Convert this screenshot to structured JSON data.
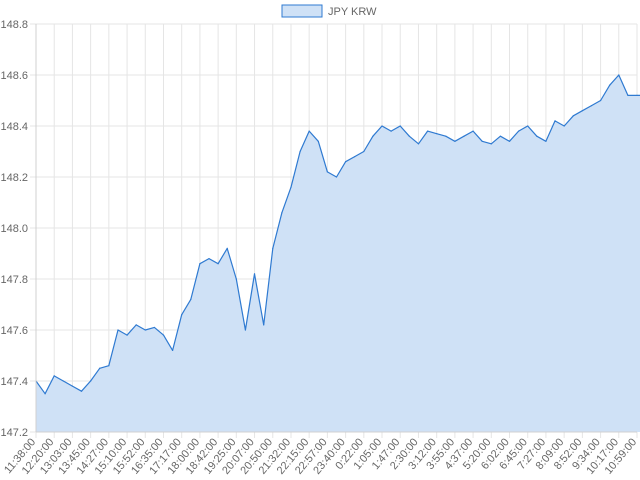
{
  "chart_data": {
    "type": "area",
    "title": "",
    "xlabel": "",
    "ylabel": "",
    "legend": {
      "position": "top-center",
      "label": "JPY KRW"
    },
    "colors": {
      "line": "#2f7ad1",
      "fill": "#cfe1f6",
      "grid": "#e5e5e5",
      "tick_text": "#666666"
    },
    "grid": true,
    "ylim": [
      147.2,
      148.8
    ],
    "y_ticks": [
      "147.2",
      "147.4",
      "147.6",
      "147.8",
      "148.0",
      "148.2",
      "148.4",
      "148.6",
      "148.8"
    ],
    "x_ticks": [
      "11:38:00",
      "12:20:00",
      "13:03:00",
      "13:45:00",
      "14:27:00",
      "15:10:00",
      "15:52:00",
      "16:35:00",
      "17:17:00",
      "18:00:00",
      "18:42:00",
      "19:25:00",
      "20:07:00",
      "20:50:00",
      "21:32:00",
      "22:15:00",
      "22:57:00",
      "23:40:00",
      "0:22:00",
      "1:05:00",
      "1:47:00",
      "2:30:00",
      "3:12:00",
      "3:55:00",
      "4:37:00",
      "5:20:00",
      "6:02:00",
      "6:45:00",
      "7:27:00",
      "8:09:00",
      "8:52:00",
      "9:34:00",
      "10:17:00",
      "10:59:00"
    ],
    "series": [
      {
        "name": "JPY KRW",
        "x": [
          0,
          0.5,
          1,
          1.5,
          2,
          2.5,
          3,
          3.5,
          4,
          4.5,
          5,
          5.5,
          6,
          6.5,
          7,
          7.5,
          8,
          8.5,
          9,
          9.5,
          10,
          10.5,
          11,
          11.5,
          12,
          12.5,
          13,
          13.5,
          14,
          14.5,
          15,
          15.5,
          16,
          16.5,
          17,
          17.5,
          18,
          18.5,
          19,
          19.5,
          20,
          20.5,
          21,
          21.5,
          22,
          22.5,
          23,
          23.5,
          24,
          24.5,
          25,
          25.5,
          26,
          26.5,
          27,
          27.5,
          28,
          28.5,
          29,
          29.5,
          30,
          30.5,
          31,
          31.5,
          32,
          32.5,
          33,
          33.5
        ],
        "values": [
          147.4,
          147.35,
          147.42,
          147.4,
          147.38,
          147.36,
          147.4,
          147.45,
          147.46,
          147.6,
          147.58,
          147.62,
          147.6,
          147.61,
          147.58,
          147.52,
          147.66,
          147.72,
          147.86,
          147.88,
          147.86,
          147.92,
          147.8,
          147.6,
          147.82,
          147.62,
          147.92,
          148.06,
          148.16,
          148.3,
          148.38,
          148.34,
          148.22,
          148.2,
          148.26,
          148.28,
          148.3,
          148.36,
          148.4,
          148.38,
          148.4,
          148.36,
          148.33,
          148.38,
          148.37,
          148.36,
          148.34,
          148.36,
          148.38,
          148.34,
          148.33,
          148.36,
          148.34,
          148.38,
          148.4,
          148.36,
          148.34,
          148.42,
          148.4,
          148.44,
          148.46,
          148.48,
          148.5,
          148.56,
          148.6,
          148.52,
          148.52,
          148.52
        ]
      }
    ]
  }
}
